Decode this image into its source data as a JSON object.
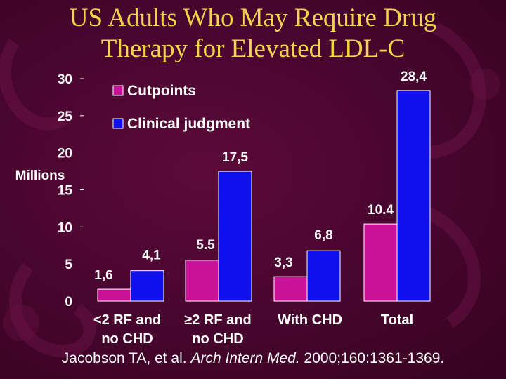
{
  "title_lines": [
    "US Adults Who May Require Drug",
    "Therapy for Elevated LDL-C"
  ],
  "citation": {
    "prefix": "Jacobson TA, et al. ",
    "journal": "Arch Intern Med.",
    "suffix": " 2000;160:1361-1369."
  },
  "colors": {
    "cutpoints": "#cc1199",
    "clinical": "#1010ee",
    "title": "#f2d44a"
  },
  "chart_data": {
    "type": "bar",
    "ylabel": "Millions",
    "ylim": [
      0,
      30
    ],
    "yticks": [
      "0",
      "5",
      "10",
      "15",
      "20",
      "25",
      "30"
    ],
    "categories": [
      [
        "<2 RF and",
        "no CHD"
      ],
      [
        "≥2 RF and",
        "no CHD"
      ],
      [
        "With CHD"
      ],
      [
        "Total"
      ]
    ],
    "series": [
      {
        "name": "Cutpoints",
        "values": [
          1.6,
          5.5,
          3.3,
          10.4
        ],
        "labels": [
          "1,6",
          "5.5",
          "3,3",
          "10.4"
        ]
      },
      {
        "name": "Clinical judgment",
        "values": [
          4.1,
          17.5,
          6.8,
          28.4
        ],
        "labels": [
          "4,1",
          "17,5",
          "6,8",
          "28,4"
        ]
      }
    ],
    "legend_position": "top-left"
  }
}
